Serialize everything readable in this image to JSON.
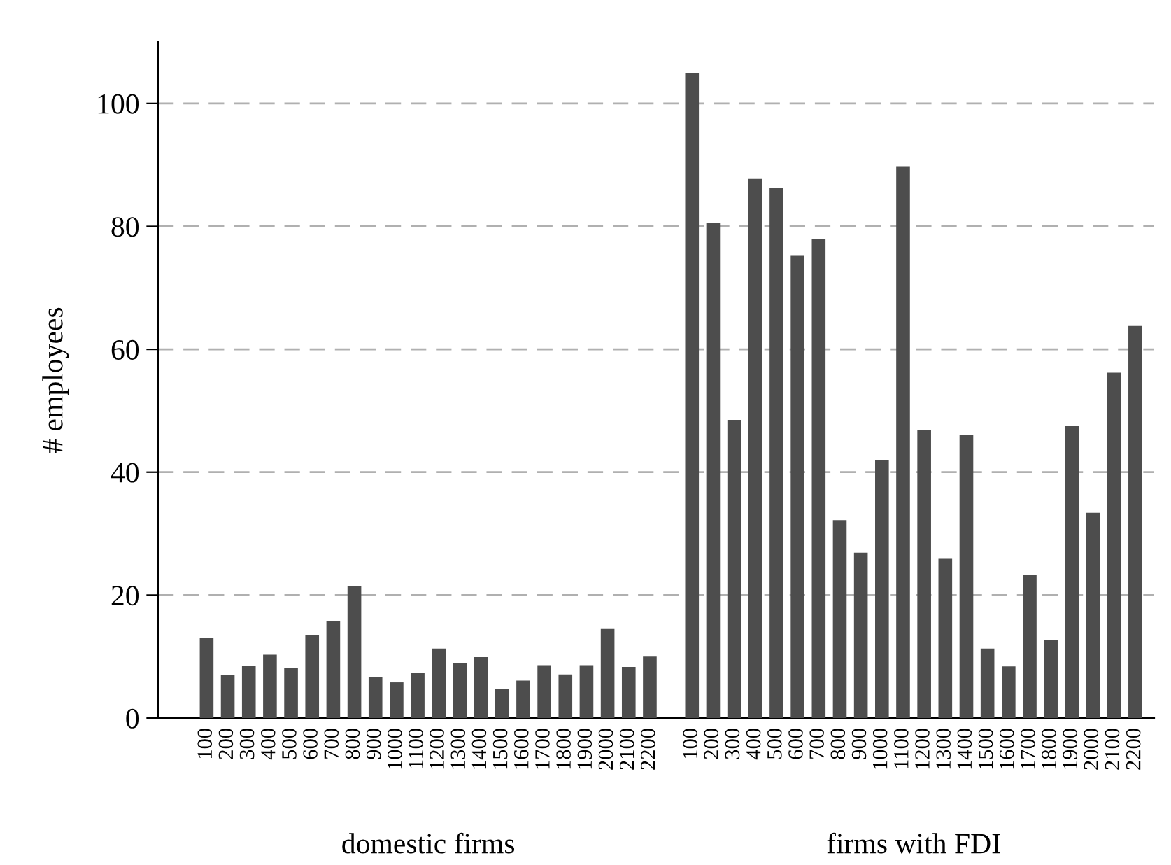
{
  "chart_data": {
    "type": "bar",
    "ylabel": "# employees",
    "categories": [
      "100",
      "200",
      "300",
      "400",
      "500",
      "600",
      "700",
      "800",
      "900",
      "1000",
      "1100",
      "1200",
      "1300",
      "1400",
      "1500",
      "1600",
      "1700",
      "1800",
      "1900",
      "2000",
      "2100",
      "2200",
      "100",
      "200",
      "300",
      "400",
      "500",
      "600",
      "700",
      "800",
      "900",
      "1000",
      "1100",
      "1200",
      "1300",
      "1400",
      "1500",
      "1600",
      "1700",
      "1800",
      "1900",
      "2000",
      "2100",
      "2200"
    ],
    "values": [
      13,
      7,
      8.5,
      10.3,
      8.2,
      13.5,
      15.8,
      21.4,
      6.6,
      5.8,
      7.4,
      11.3,
      8.9,
      9.9,
      4.7,
      6.1,
      8.6,
      7.1,
      8.6,
      14.5,
      8.3,
      10.0,
      105,
      80.5,
      48.5,
      87.7,
      86.3,
      75.2,
      78,
      32.2,
      26.9,
      42,
      89.8,
      46.8,
      25.9,
      46,
      11.3,
      8.4,
      23.3,
      12.7,
      47.6,
      33.4,
      56.2,
      63.8
    ],
    "color": "#4d4d4d",
    "annotations": [
      "domestic firms",
      "firms with FDI"
    ],
    "ylim": [
      0,
      110
    ],
    "yticks": [
      0,
      20,
      40,
      60,
      80,
      100
    ],
    "grid": "y"
  }
}
